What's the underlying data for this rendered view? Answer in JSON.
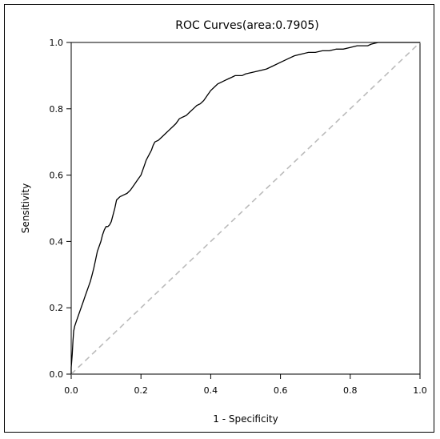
{
  "chart_data": {
    "type": "line",
    "title": "ROC Curves(area:0.7905)",
    "xlabel": "1 - Specificity",
    "ylabel": "Sensitivity",
    "xlim": [
      0.0,
      1.0
    ],
    "ylim": [
      0.0,
      1.0
    ],
    "x_ticks": [
      "0.0",
      "0.2",
      "0.4",
      "0.6",
      "0.8",
      "1.0"
    ],
    "y_ticks": [
      "0.0",
      "0.2",
      "0.4",
      "0.6",
      "0.8",
      "1.0"
    ],
    "grid": false,
    "legend": "none",
    "series": [
      {
        "style": "solid",
        "color": "#000000",
        "x": [
          0.0,
          0.0,
          0.003,
          0.005,
          0.007,
          0.01,
          0.015,
          0.02,
          0.025,
          0.03,
          0.035,
          0.04,
          0.045,
          0.05,
          0.055,
          0.06,
          0.065,
          0.07,
          0.075,
          0.08,
          0.085,
          0.09,
          0.095,
          0.1,
          0.105,
          0.11,
          0.115,
          0.12,
          0.125,
          0.13,
          0.14,
          0.15,
          0.16,
          0.17,
          0.18,
          0.19,
          0.2,
          0.205,
          0.21,
          0.215,
          0.22,
          0.225,
          0.23,
          0.235,
          0.24,
          0.25,
          0.26,
          0.27,
          0.28,
          0.29,
          0.3,
          0.31,
          0.32,
          0.33,
          0.34,
          0.35,
          0.36,
          0.37,
          0.38,
          0.39,
          0.4,
          0.41,
          0.42,
          0.43,
          0.44,
          0.45,
          0.46,
          0.47,
          0.48,
          0.49,
          0.5,
          0.52,
          0.54,
          0.56,
          0.58,
          0.6,
          0.62,
          0.64,
          0.66,
          0.68,
          0.7,
          0.72,
          0.74,
          0.76,
          0.78,
          0.8,
          0.82,
          0.84,
          0.85,
          0.86,
          0.88,
          0.9,
          0.92,
          0.95,
          0.98,
          1.0
        ],
        "y": [
          0.0,
          0.02,
          0.06,
          0.1,
          0.13,
          0.145,
          0.16,
          0.175,
          0.19,
          0.205,
          0.22,
          0.235,
          0.25,
          0.265,
          0.28,
          0.3,
          0.32,
          0.345,
          0.37,
          0.385,
          0.4,
          0.42,
          0.435,
          0.445,
          0.445,
          0.45,
          0.46,
          0.48,
          0.5,
          0.525,
          0.535,
          0.54,
          0.545,
          0.555,
          0.57,
          0.585,
          0.6,
          0.615,
          0.63,
          0.645,
          0.655,
          0.665,
          0.675,
          0.69,
          0.7,
          0.705,
          0.715,
          0.725,
          0.735,
          0.745,
          0.755,
          0.77,
          0.775,
          0.78,
          0.79,
          0.8,
          0.81,
          0.815,
          0.825,
          0.84,
          0.855,
          0.865,
          0.875,
          0.88,
          0.885,
          0.89,
          0.895,
          0.9,
          0.9,
          0.9,
          0.905,
          0.91,
          0.915,
          0.92,
          0.93,
          0.94,
          0.95,
          0.96,
          0.965,
          0.97,
          0.97,
          0.975,
          0.975,
          0.98,
          0.98,
          0.985,
          0.99,
          0.99,
          0.99,
          0.995,
          1.0,
          1.0,
          1.0,
          1.0,
          1.0,
          1.0
        ]
      },
      {
        "style": "dashed",
        "color": "#bbbbbb",
        "x": [
          0.0,
          1.0
        ],
        "y": [
          0.0,
          1.0
        ]
      }
    ]
  }
}
